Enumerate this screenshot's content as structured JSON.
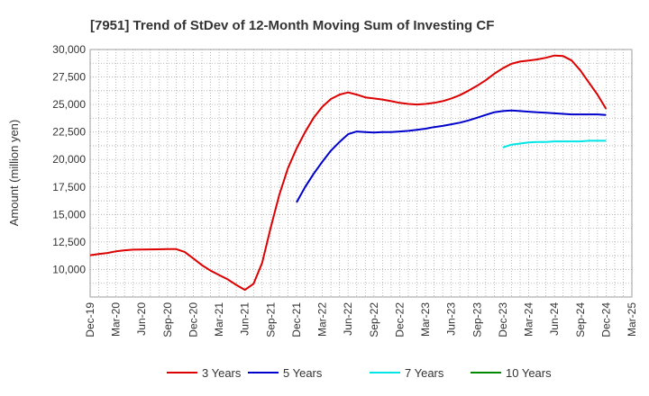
{
  "chart_data": {
    "type": "line",
    "title": "[7951]  Trend of StDev of 12-Month Moving Sum of Investing CF",
    "xlabel": "",
    "ylabel": "Amount (million yen)",
    "ylim": [
      7500,
      30000
    ],
    "y_ticks": [
      "10,000",
      "12,500",
      "15,000",
      "17,500",
      "20,000",
      "22,500",
      "25,000",
      "27,500",
      "30,000"
    ],
    "x_ticks": [
      "Dec-19",
      "Mar-20",
      "Jun-20",
      "Sep-20",
      "Dec-20",
      "Mar-21",
      "Jun-21",
      "Sep-21",
      "Dec-21",
      "Mar-22",
      "Jun-22",
      "Sep-22",
      "Dec-22",
      "Mar-23",
      "Jun-23",
      "Sep-23",
      "Dec-23",
      "Mar-24",
      "Jun-24",
      "Sep-24",
      "Dec-24",
      "Mar-25"
    ],
    "grid": true,
    "legend_position": "bottom",
    "series": [
      {
        "name": "3 Years",
        "color": "#dd0000",
        "points": [
          [
            "Dec-19",
            11300
          ],
          [
            "Jan-20",
            11400
          ],
          [
            "Feb-20",
            11500
          ],
          [
            "Mar-20",
            11650
          ],
          [
            "Apr-20",
            11750
          ],
          [
            "May-20",
            11800
          ],
          [
            "Jun-20",
            11820
          ],
          [
            "Jul-20",
            11830
          ],
          [
            "Aug-20",
            11840
          ],
          [
            "Sep-20",
            11850
          ],
          [
            "Oct-20",
            11850
          ],
          [
            "Nov-20",
            11600
          ],
          [
            "Dec-20",
            11000
          ],
          [
            "Jan-21",
            10400
          ],
          [
            "Feb-21",
            9900
          ],
          [
            "Mar-21",
            9500
          ],
          [
            "Apr-21",
            9100
          ],
          [
            "May-21",
            8600
          ],
          [
            "Jun-21",
            8150
          ],
          [
            "Jul-21",
            8700
          ],
          [
            "Aug-21",
            10600
          ],
          [
            "Sep-21",
            13800
          ],
          [
            "Oct-21",
            16800
          ],
          [
            "Nov-21",
            19200
          ],
          [
            "Dec-21",
            21000
          ],
          [
            "Jan-22",
            22500
          ],
          [
            "Feb-22",
            23800
          ],
          [
            "Mar-22",
            24800
          ],
          [
            "Apr-22",
            25500
          ],
          [
            "May-22",
            25900
          ],
          [
            "Jun-22",
            26100
          ],
          [
            "Jul-22",
            25900
          ],
          [
            "Aug-22",
            25650
          ],
          [
            "Sep-22",
            25550
          ],
          [
            "Oct-22",
            25450
          ],
          [
            "Nov-22",
            25300
          ],
          [
            "Dec-22",
            25150
          ],
          [
            "Jan-23",
            25050
          ],
          [
            "Feb-23",
            25000
          ],
          [
            "Mar-23",
            25050
          ],
          [
            "Apr-23",
            25150
          ],
          [
            "May-23",
            25300
          ],
          [
            "Jun-23",
            25550
          ],
          [
            "Jul-23",
            25850
          ],
          [
            "Aug-23",
            26250
          ],
          [
            "Sep-23",
            26700
          ],
          [
            "Oct-23",
            27200
          ],
          [
            "Nov-23",
            27800
          ],
          [
            "Dec-23",
            28300
          ],
          [
            "Jan-24",
            28700
          ],
          [
            "Feb-24",
            28900
          ],
          [
            "Mar-24",
            29000
          ],
          [
            "Apr-24",
            29100
          ],
          [
            "May-24",
            29250
          ],
          [
            "Jun-24",
            29450
          ],
          [
            "Jul-24",
            29400
          ],
          [
            "Aug-24",
            29000
          ],
          [
            "Sep-24",
            28100
          ],
          [
            "Oct-24",
            27000
          ],
          [
            "Nov-24",
            25900
          ],
          [
            "Dec-24",
            24600
          ]
        ]
      },
      {
        "name": "5 Years",
        "color": "#0000cc",
        "points": [
          [
            "Dec-21",
            16100
          ],
          [
            "Jan-22",
            17500
          ],
          [
            "Feb-22",
            18700
          ],
          [
            "Mar-22",
            19800
          ],
          [
            "Apr-22",
            20800
          ],
          [
            "May-22",
            21600
          ],
          [
            "Jun-22",
            22300
          ],
          [
            "Jul-22",
            22550
          ],
          [
            "Aug-22",
            22500
          ],
          [
            "Sep-22",
            22450
          ],
          [
            "Oct-22",
            22500
          ],
          [
            "Nov-22",
            22500
          ],
          [
            "Dec-22",
            22550
          ],
          [
            "Jan-23",
            22600
          ],
          [
            "Feb-23",
            22700
          ],
          [
            "Mar-23",
            22800
          ],
          [
            "Apr-23",
            22950
          ],
          [
            "May-23",
            23050
          ],
          [
            "Jun-23",
            23200
          ],
          [
            "Jul-23",
            23350
          ],
          [
            "Aug-23",
            23550
          ],
          [
            "Sep-23",
            23800
          ],
          [
            "Oct-23",
            24050
          ],
          [
            "Nov-23",
            24300
          ],
          [
            "Dec-23",
            24400
          ],
          [
            "Jan-24",
            24450
          ],
          [
            "Feb-24",
            24400
          ],
          [
            "Mar-24",
            24350
          ],
          [
            "Apr-24",
            24300
          ],
          [
            "May-24",
            24250
          ],
          [
            "Jun-24",
            24200
          ],
          [
            "Jul-24",
            24150
          ],
          [
            "Aug-24",
            24100
          ],
          [
            "Sep-24",
            24100
          ],
          [
            "Oct-24",
            24100
          ],
          [
            "Nov-24",
            24100
          ],
          [
            "Dec-24",
            24050
          ]
        ]
      },
      {
        "name": "7 Years",
        "color": "#00e5e5",
        "points": [
          [
            "Dec-23",
            21100
          ],
          [
            "Jan-24",
            21350
          ],
          [
            "Feb-24",
            21450
          ],
          [
            "Mar-24",
            21550
          ],
          [
            "Apr-24",
            21600
          ],
          [
            "May-24",
            21600
          ],
          [
            "Jun-24",
            21650
          ],
          [
            "Jul-24",
            21650
          ],
          [
            "Aug-24",
            21650
          ],
          [
            "Sep-24",
            21650
          ],
          [
            "Oct-24",
            21700
          ],
          [
            "Nov-24",
            21700
          ],
          [
            "Dec-24",
            21700
          ]
        ]
      },
      {
        "name": "10 Years",
        "color": "#008800",
        "points": []
      }
    ]
  }
}
